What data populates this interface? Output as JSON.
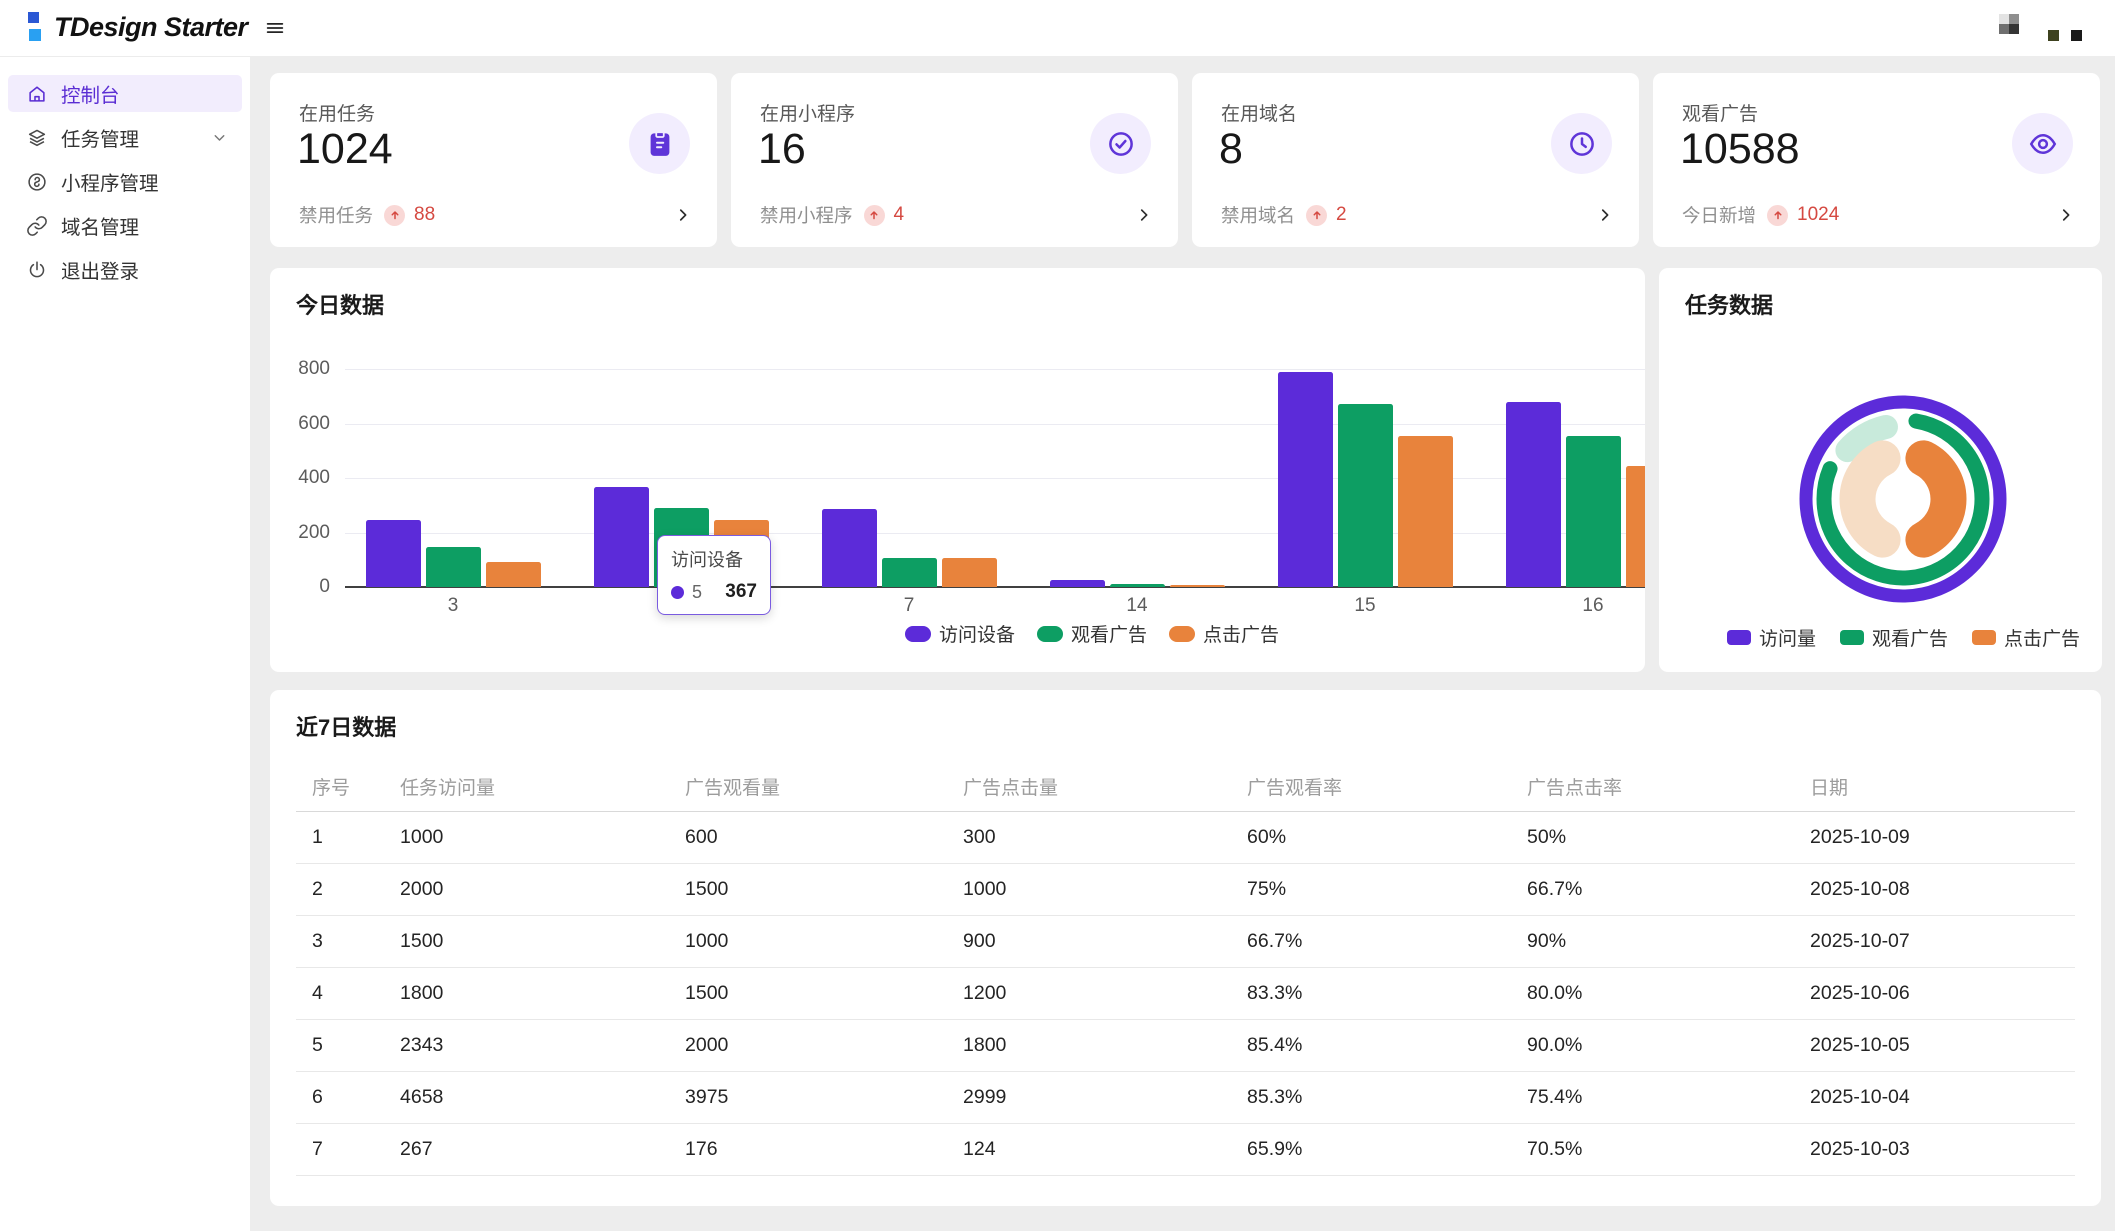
{
  "colors": {
    "brand_purple": "#5a2dd3",
    "bar_purple": "#5c2bd9",
    "green": "#0d9e63",
    "orange": "#e8833c",
    "red": "#d54941",
    "content_bg": "#ededed"
  },
  "header": {
    "logo_text": "TDesign Starter"
  },
  "topbar": {
    "blocks": [
      {
        "name": "checker-avatar",
        "colors": [
          "#e3e3e3",
          "#8f8f8f",
          "#6f6f6f",
          "#353535"
        ]
      },
      {
        "name": "olive-square",
        "color": "#3e421f"
      },
      {
        "name": "dark-square",
        "color": "#1a1a1a"
      }
    ]
  },
  "sidebar": {
    "items": [
      {
        "label": "控制台",
        "icon": "home-icon",
        "active": true,
        "expandable": false
      },
      {
        "label": "任务管理",
        "icon": "layers-icon",
        "active": false,
        "expandable": true
      },
      {
        "label": "小程序管理",
        "icon": "miniprogram-icon",
        "active": false,
        "expandable": false
      },
      {
        "label": "域名管理",
        "icon": "link-icon",
        "active": false,
        "expandable": false
      },
      {
        "label": "退出登录",
        "icon": "power-icon",
        "active": false,
        "expandable": false
      }
    ]
  },
  "stat_cards": [
    {
      "label": "在用任务",
      "value": "1024",
      "icon": "clipboard-icon",
      "sub_label": "禁用任务",
      "delta": "88"
    },
    {
      "label": "在用小程序",
      "value": "16",
      "icon": "check-circle-icon",
      "sub_label": "禁用小程序",
      "delta": "4"
    },
    {
      "label": "在用域名",
      "value": "8",
      "icon": "clock-icon",
      "sub_label": "禁用域名",
      "delta": "2"
    },
    {
      "label": "观看广告",
      "value": "10588",
      "icon": "eye-icon",
      "sub_label": "今日新增",
      "delta": "1024"
    }
  ],
  "chart_data": [
    {
      "type": "bar",
      "title": "今日数据",
      "x": [
        "3",
        "5",
        "7",
        "14",
        "15",
        "16"
      ],
      "series": [
        {
          "name": "访问设备",
          "color": "#5c2bd9",
          "values": [
            245,
            367,
            288,
            26,
            790,
            678
          ]
        },
        {
          "name": "观看广告",
          "color": "#0d9e63",
          "values": [
            145,
            290,
            106,
            12,
            670,
            555
          ]
        },
        {
          "name": "点击广告",
          "color": "#e8833c",
          "values": [
            90,
            245,
            108,
            8,
            555,
            445
          ]
        }
      ],
      "ylim": [
        0,
        800
      ],
      "yticks": [
        800,
        600,
        400,
        200,
        0
      ],
      "grid": true,
      "legend_position": "bottom",
      "tooltip": {
        "title": "访问设备",
        "item": "5",
        "value": "367",
        "dot_color": "#5c2bd9"
      }
    },
    {
      "type": "pie",
      "title": "任务数据",
      "legend": [
        "访问量",
        "观看广告",
        "点击广告"
      ],
      "legend_colors": [
        "#5c2bd9",
        "#0d9e63",
        "#e8833c"
      ],
      "rings": [
        {
          "name": "访问量",
          "segments": [
            {
              "color": "#5c2bd9",
              "start": 0,
              "end": 360
            }
          ]
        },
        {
          "name": "观看广告",
          "segments": [
            {
              "color": "#0d9e63",
              "start": 4,
              "end": 298
            },
            {
              "color": "#c8eadb",
              "start": 302,
              "end": 356
            }
          ]
        },
        {
          "name": "点击广告",
          "segments": [
            {
              "color": "#e8833c",
              "start": 4,
              "end": 176
            },
            {
              "color": "#f6ddc5",
              "start": 184,
              "end": 356
            }
          ]
        }
      ]
    }
  ],
  "table": {
    "title": "近7日数据",
    "columns": [
      "序号",
      "任务访问量",
      "广告观看量",
      "广告点击量",
      "广告观看率",
      "广告点击率",
      "日期"
    ],
    "rows": [
      [
        "1",
        "1000",
        "600",
        "300",
        "60%",
        "50%",
        "2025-10-09"
      ],
      [
        "2",
        "2000",
        "1500",
        "1000",
        "75%",
        "66.7%",
        "2025-10-08"
      ],
      [
        "3",
        "1500",
        "1000",
        "900",
        "66.7%",
        "90%",
        "2025-10-07"
      ],
      [
        "4",
        "1800",
        "1500",
        "1200",
        "83.3%",
        "80.0%",
        "2025-10-06"
      ],
      [
        "5",
        "2343",
        "2000",
        "1800",
        "85.4%",
        "90.0%",
        "2025-10-05"
      ],
      [
        "6",
        "4658",
        "3975",
        "2999",
        "85.3%",
        "75.4%",
        "2025-10-04"
      ],
      [
        "7",
        "267",
        "176",
        "124",
        "65.9%",
        "70.5%",
        "2025-10-03"
      ]
    ]
  }
}
